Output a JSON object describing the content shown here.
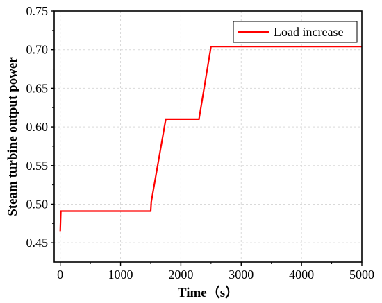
{
  "chart_data": {
    "type": "line",
    "xlabel": "Time（s）",
    "ylabel": "Steam turbine output power",
    "xlim": [
      -100,
      5000
    ],
    "ylim": [
      0.425,
      0.75
    ],
    "xticks": [
      0,
      1000,
      2000,
      3000,
      4000,
      5000
    ],
    "xtick_labels": [
      "0",
      "1000",
      "2000",
      "3000",
      "4000",
      "5000"
    ],
    "yticks": [
      0.45,
      0.5,
      0.55,
      0.6,
      0.65,
      0.7,
      0.75
    ],
    "ytick_labels": [
      "0.45",
      "0.50",
      "0.55",
      "0.60",
      "0.65",
      "0.70",
      "0.75"
    ],
    "grid": true,
    "legend": "top-right",
    "series": [
      {
        "name": "Load increase",
        "color": "#ff0000",
        "x": [
          0,
          10,
          1500,
          1510,
          1750,
          2300,
          2500,
          5000
        ],
        "y": [
          0.465,
          0.491,
          0.491,
          0.503,
          0.61,
          0.61,
          0.704,
          0.704
        ]
      }
    ]
  }
}
